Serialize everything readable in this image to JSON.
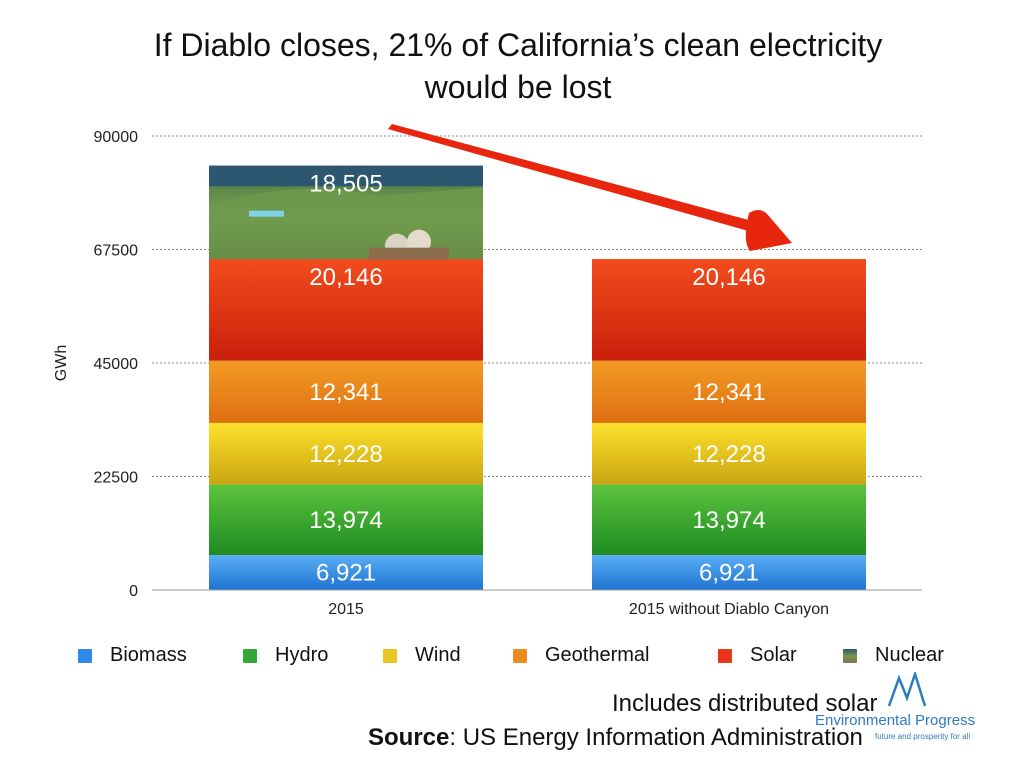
{
  "title": "If Diablo closes, 21% of California’s clean electricity would be lost",
  "chart_data": {
    "type": "bar",
    "stacked": true,
    "ylabel": "GWh",
    "ylim": [
      0,
      90000
    ],
    "yticks": [
      "0",
      "22500",
      "45000",
      "67500",
      "90000"
    ],
    "grid": true,
    "legend_position": "bottom",
    "categories": [
      "2015",
      "2015 without Diablo Canyon"
    ],
    "series": [
      {
        "name": "Biomass",
        "color": "#2e8ae6",
        "values": [
          6921,
          6921
        ],
        "labels": [
          "6,921",
          "6,921"
        ]
      },
      {
        "name": "Hydro",
        "color": "#34a834",
        "values": [
          13974,
          13974
        ],
        "labels": [
          "13,974",
          "13,974"
        ]
      },
      {
        "name": "Wind",
        "color": "#e8c81f",
        "values": [
          12228,
          12228
        ],
        "labels": [
          "12,228",
          "12,228"
        ]
      },
      {
        "name": "Geothermal",
        "color": "#ec8a1e",
        "values": [
          12341,
          12341
        ],
        "labels": [
          "12,341",
          "12,341"
        ]
      },
      {
        "name": "Solar",
        "color": "#e8381a",
        "values": [
          20146,
          20146
        ],
        "labels": [
          "20,146",
          "20,146"
        ]
      },
      {
        "name": "Nuclear",
        "color": "#4b7a45",
        "values": [
          18505,
          0
        ],
        "labels": [
          "18,505",
          ""
        ]
      }
    ],
    "annotations": [
      "Includes distributed solar"
    ]
  },
  "footer": {
    "source_label": "Source",
    "source_text": ": US Energy Information Administration",
    "note": "Includes distributed solar"
  },
  "logo": {
    "name": "Environmental Progress",
    "tagline": "future and prosperity for all",
    "color": "#2f7bbf"
  },
  "arrow_color": "#e8260e"
}
